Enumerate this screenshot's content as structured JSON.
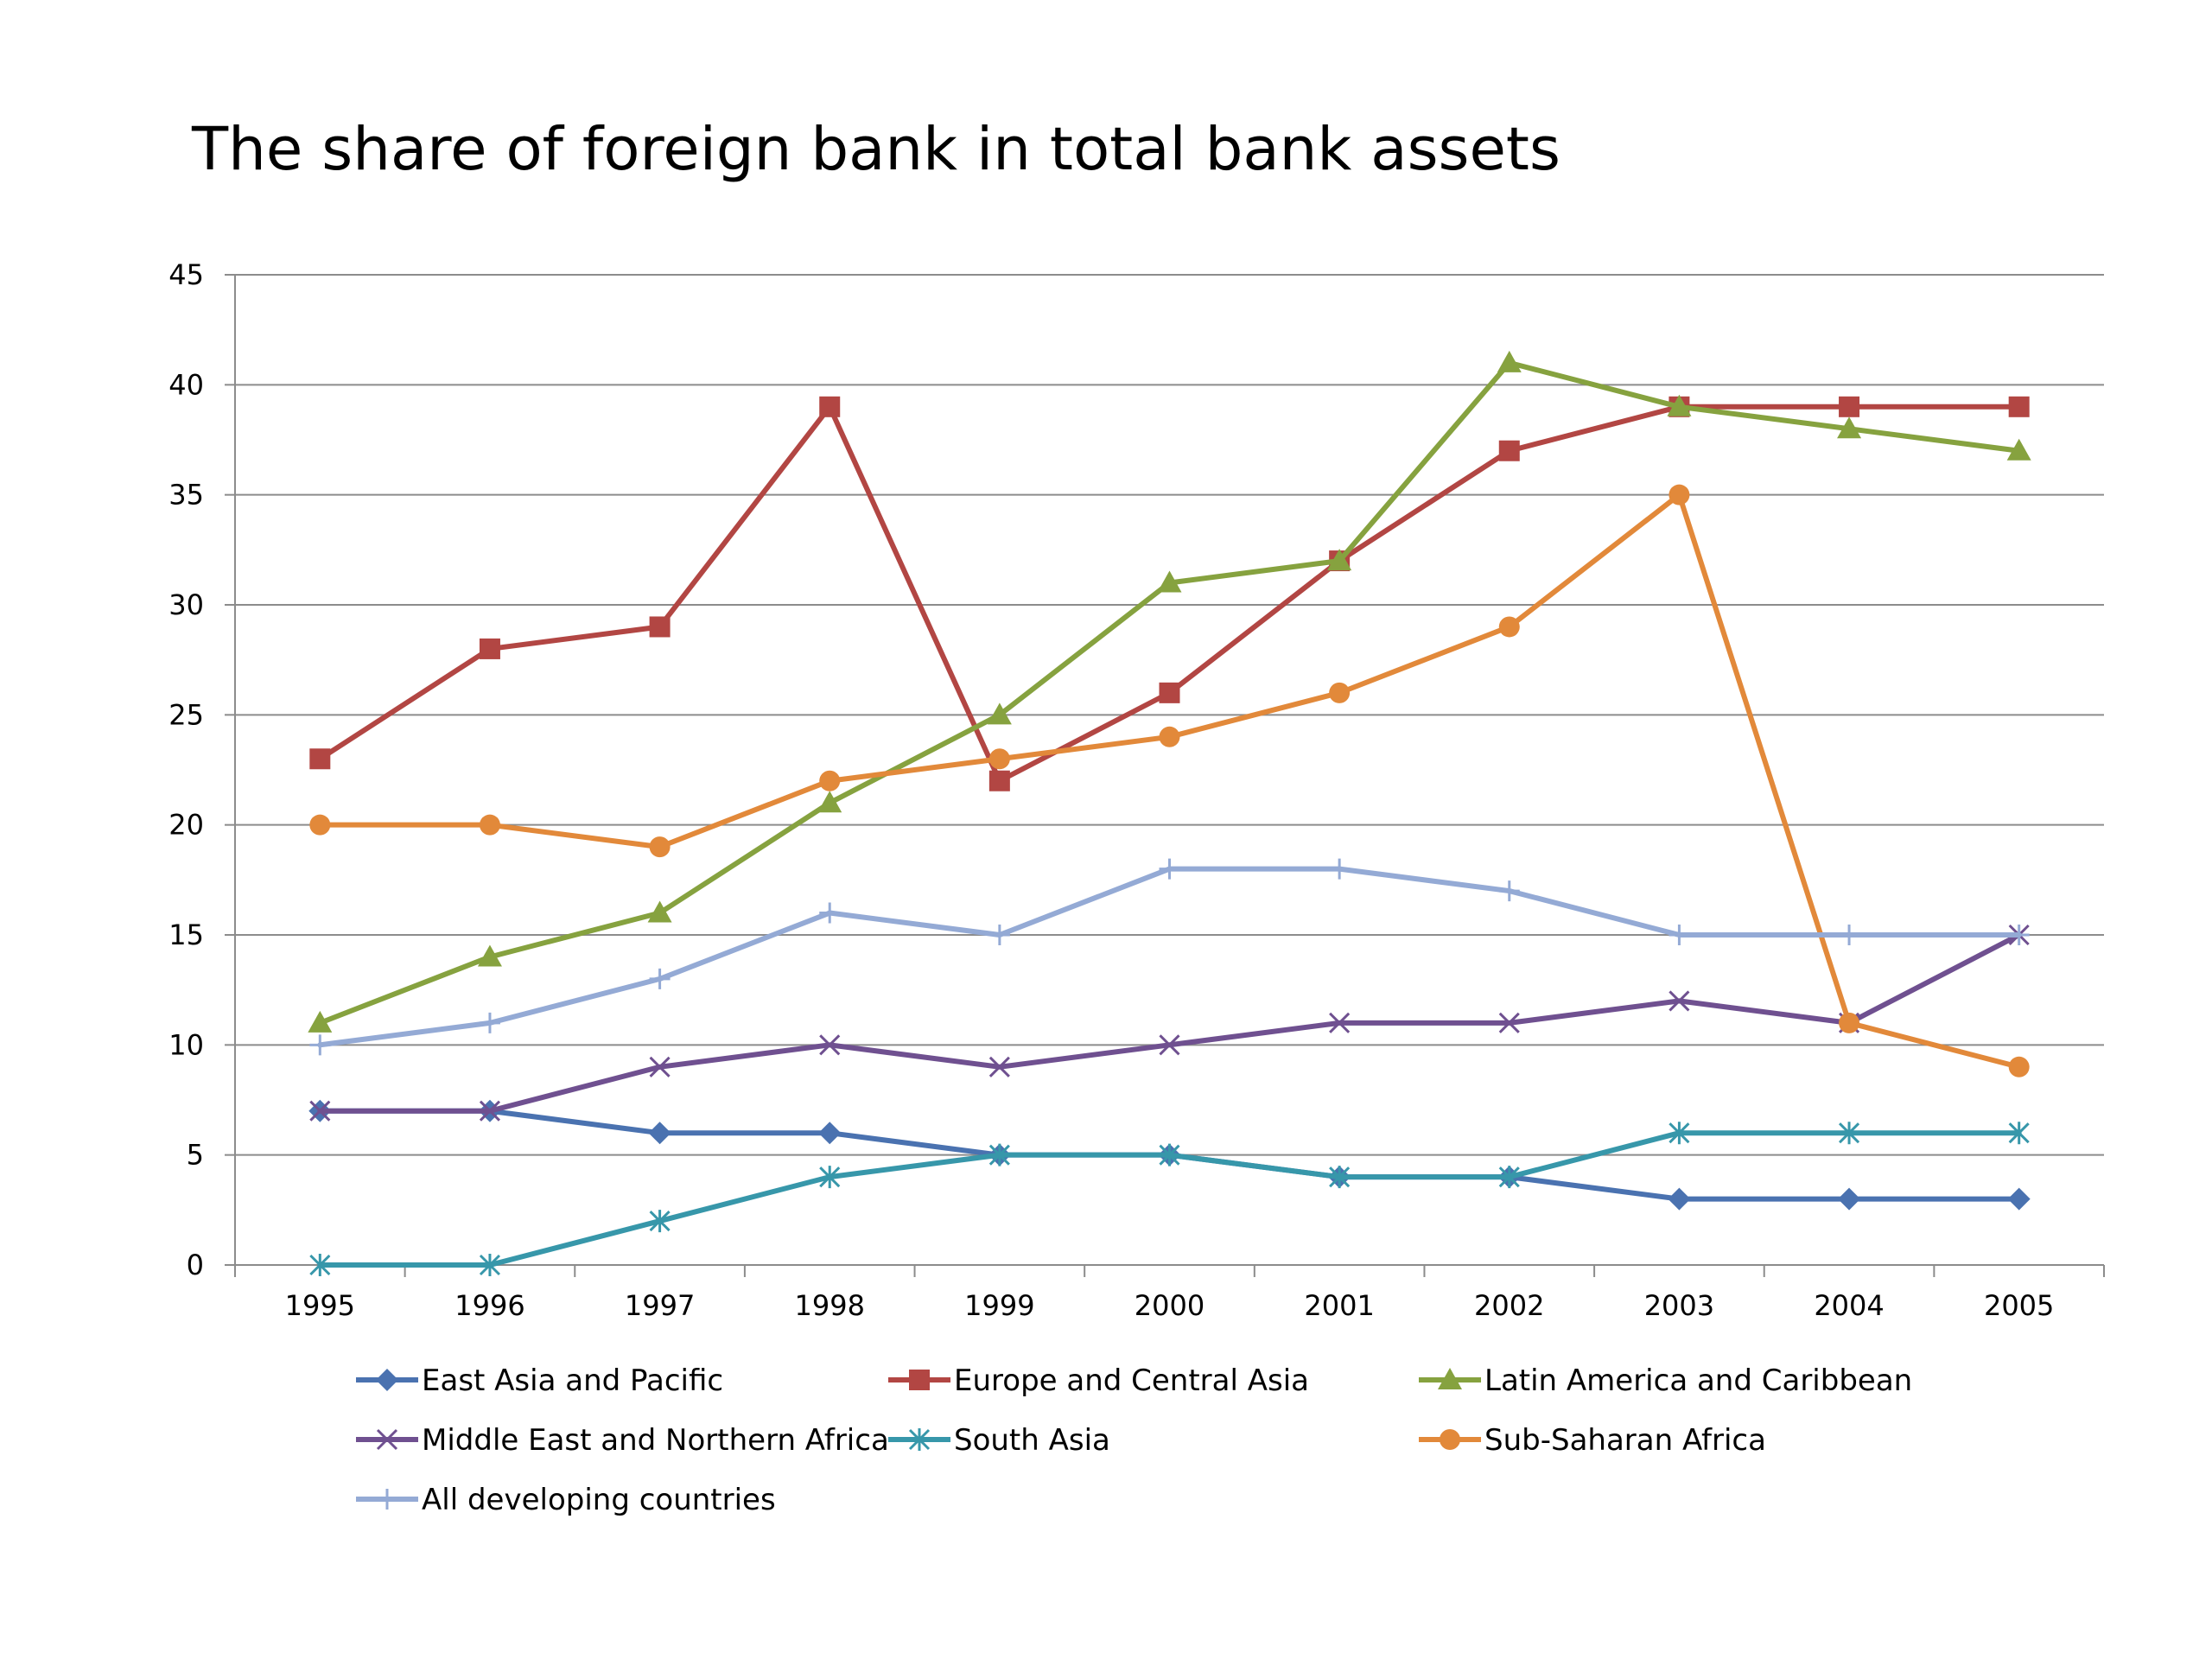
{
  "chart_data": {
    "type": "line",
    "title": "The share of foreign bank in total bank assets",
    "xlabel": "",
    "ylabel": "",
    "ylim": [
      0,
      45
    ],
    "yticks": [
      "0",
      "5",
      "10",
      "15",
      "20",
      "25",
      "30",
      "35",
      "40",
      "45"
    ],
    "categories": [
      "1995",
      "1996",
      "1997",
      "1998",
      "1999",
      "2000",
      "2001",
      "2002",
      "2003",
      "2004",
      "2005"
    ],
    "grid": "horizontal",
    "legend_position": "bottom",
    "series": [
      {
        "name": "East Asia and Pacific",
        "color": "#4a72b0",
        "marker": "diamond",
        "values": [
          7,
          7,
          6,
          6,
          5,
          5,
          4,
          4,
          3,
          3,
          3
        ]
      },
      {
        "name": "Europe and Central Asia",
        "color": "#b24643",
        "marker": "square",
        "values": [
          23,
          28,
          29,
          39,
          22,
          26,
          32,
          37,
          39,
          39,
          39
        ]
      },
      {
        "name": "Latin America and Caribbean",
        "color": "#86a23f",
        "marker": "triangle",
        "values": [
          11,
          14,
          16,
          21,
          25,
          31,
          32,
          41,
          39,
          38,
          37
        ]
      },
      {
        "name": "Middle East and Northern Africa",
        "color": "#6f5090",
        "marker": "x",
        "values": [
          7,
          7,
          9,
          10,
          9,
          10,
          11,
          11,
          12,
          11,
          15
        ]
      },
      {
        "name": "South Asia",
        "color": "#3797aa",
        "marker": "asterisk",
        "values": [
          0,
          0,
          2,
          4,
          5,
          5,
          4,
          4,
          6,
          6,
          6
        ]
      },
      {
        "name": "Sub-Saharan Africa",
        "color": "#e2893a",
        "marker": "circle",
        "values": [
          20,
          20,
          19,
          22,
          23,
          24,
          26,
          29,
          35,
          11,
          9
        ]
      },
      {
        "name": "All developing countries",
        "color": "#94aad5",
        "marker": "plus",
        "values": [
          10,
          11,
          13,
          16,
          15,
          18,
          18,
          17,
          15,
          15,
          15
        ]
      }
    ]
  }
}
